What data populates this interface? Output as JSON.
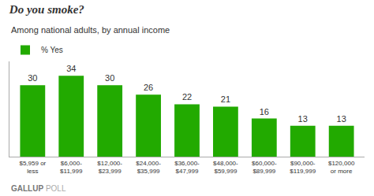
{
  "chart_data": {
    "type": "bar",
    "title": "Do you smoke?",
    "subtitle": "Among national adults, by annual income",
    "categories": [
      "$5,959 or\nless",
      "$6,000-\n$11,999",
      "$12,000-\n$23,999",
      "$24,000-\n$35,999",
      "$36,000-\n$47,999",
      "$48,000-\n$59,999",
      "$60,000-\n$89,999",
      "$90,000-\n$119,999",
      "$120,000\nor more"
    ],
    "series": [
      {
        "name": "% Yes",
        "color": "#22aa00",
        "values": [
          30,
          34,
          30,
          26,
          22,
          21,
          16,
          13,
          13
        ]
      }
    ],
    "ylim": [
      0,
      40
    ],
    "yticks": [],
    "grid": false,
    "legend": "upper left",
    "data_labels": true,
    "tick_labels": "x",
    "annotations": [
      "GALLUP",
      "POLL"
    ]
  }
}
